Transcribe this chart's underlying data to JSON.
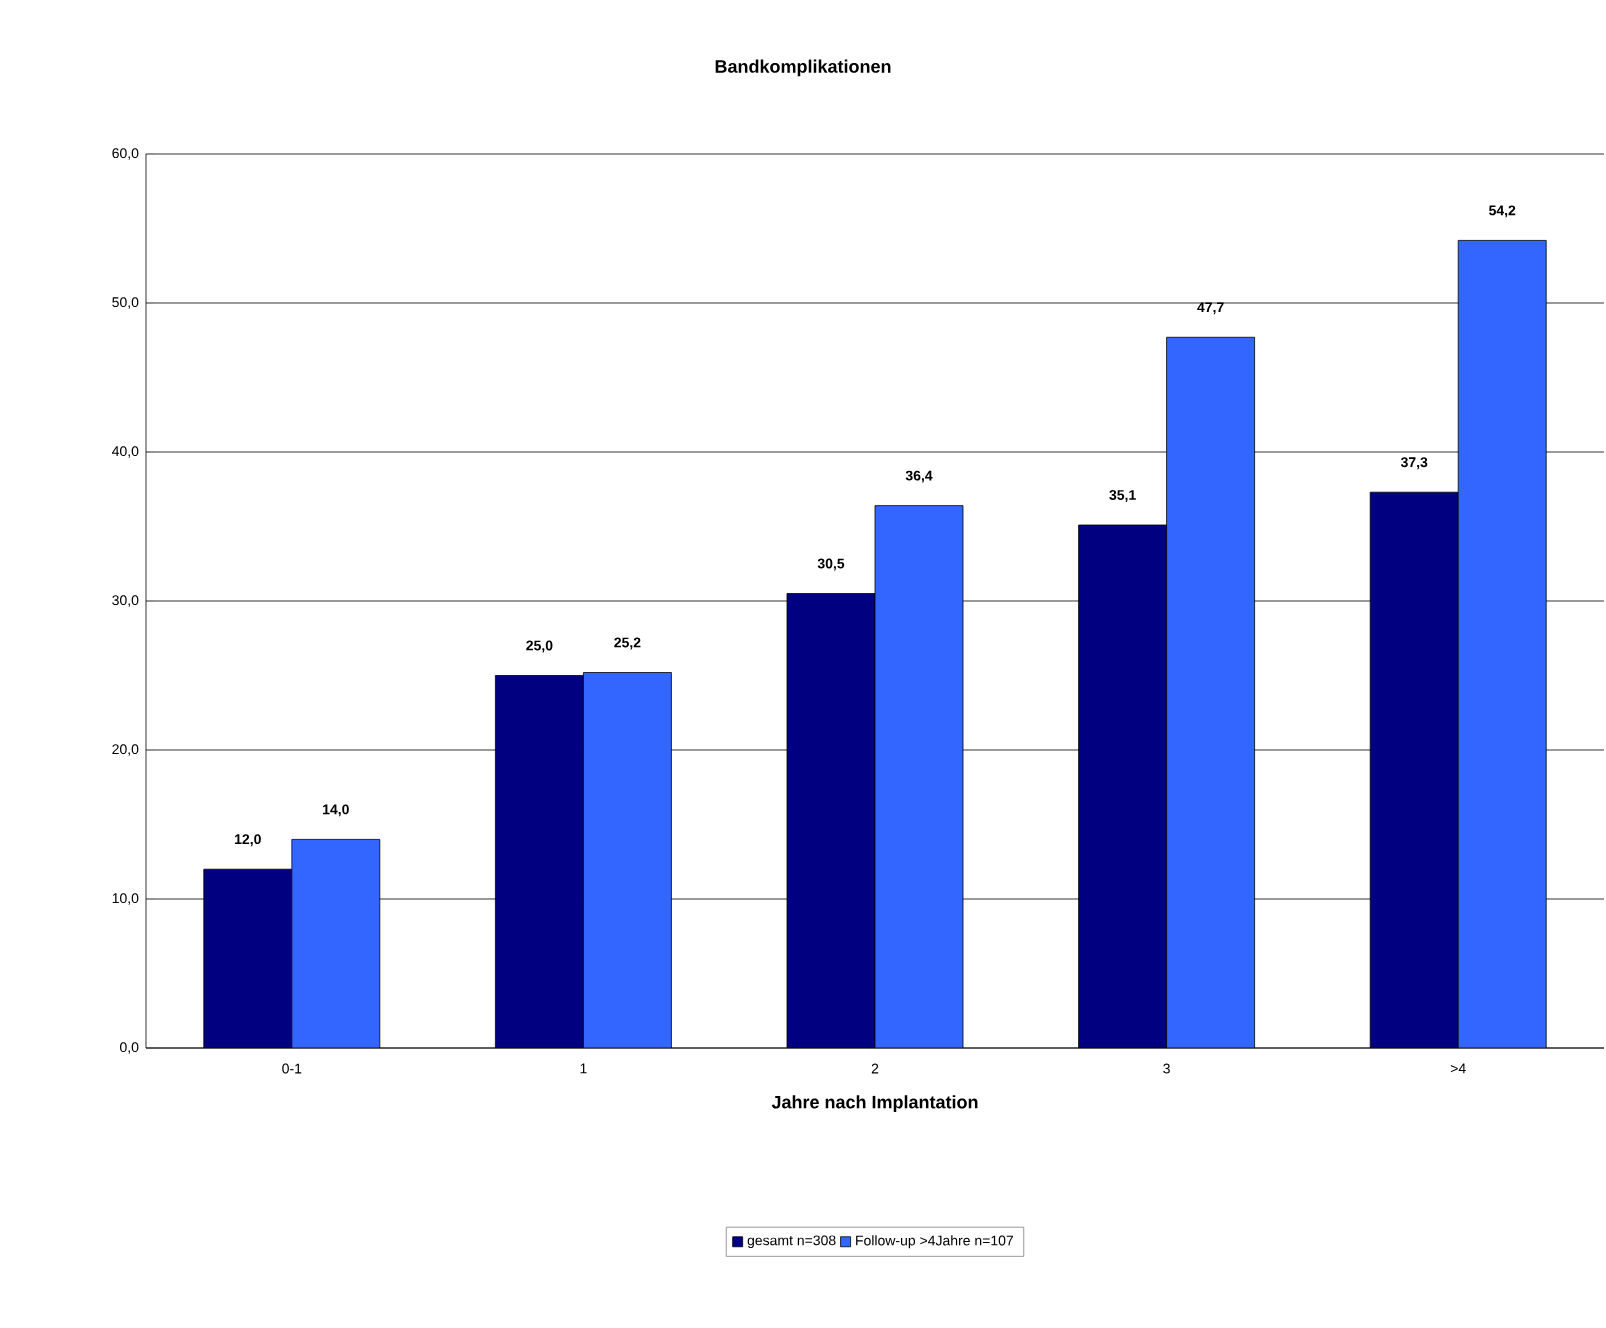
{
  "chart_data": {
    "type": "bar",
    "title": "Bandkomplikationen",
    "xlabel": "Jahre nach Implantation",
    "categories": [
      "0-1",
      "1",
      "2",
      "3",
      ">4"
    ],
    "series": [
      {
        "name": "gesamt n=308",
        "color": "#000080",
        "values": [
          12.0,
          25.0,
          30.5,
          35.1,
          37.3
        ],
        "value_labels": [
          "12,0",
          "25,0",
          "30,5",
          "35,1",
          "37,3"
        ]
      },
      {
        "name": "Follow-up >4Jahre n=107",
        "color": "#3366ff",
        "values": [
          14.0,
          25.2,
          36.4,
          47.7,
          54.2
        ],
        "value_labels": [
          "14,0",
          "25,2",
          "36,4",
          "47,7",
          "54,2"
        ]
      }
    ],
    "ylim": [
      0,
      60
    ],
    "yticks": [
      {
        "value": 0,
        "label": "0,0"
      },
      {
        "value": 10,
        "label": "10,0"
      },
      {
        "value": 20,
        "label": "20,0"
      },
      {
        "value": 30,
        "label": "30,0"
      },
      {
        "value": 40,
        "label": "40,0"
      },
      {
        "value": 50,
        "label": "50,0"
      },
      {
        "value": 60,
        "label": "60,0"
      }
    ],
    "grid": "y",
    "legend": "bottom"
  }
}
